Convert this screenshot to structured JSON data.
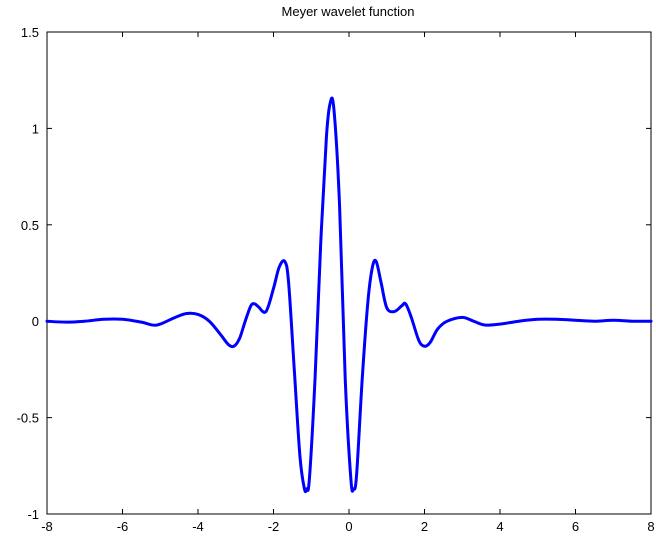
{
  "chart_data": {
    "type": "line",
    "title": "Meyer wavelet function",
    "xlabel": "",
    "ylabel": "",
    "xlim": [
      -8,
      8
    ],
    "ylim": [
      -1,
      1.5
    ],
    "xticks": [
      -8,
      -6,
      -4,
      -2,
      0,
      2,
      4,
      6,
      8
    ],
    "xtick_labels": [
      "-8",
      "-6",
      "-4",
      "-2",
      "0",
      "2",
      "4",
      "6",
      "8"
    ],
    "yticks": [
      -1,
      -0.5,
      0,
      0.5,
      1,
      1.5
    ],
    "ytick_labels": [
      "-1",
      "-0.5",
      "0",
      "0.5",
      "1",
      "1.5"
    ],
    "grid": false,
    "legend": "none",
    "series": [
      {
        "color": "#0000ff",
        "x": [
          -8,
          -7.5,
          -7,
          -6.5,
          -6,
          -5.5,
          -5.2,
          -5,
          -4.6,
          -4.3,
          -4,
          -3.7,
          -3.4,
          -3.2,
          -3.05,
          -2.9,
          -2.75,
          -2.6,
          -2.5,
          -2.4,
          -2.2,
          -2.0,
          -1.85,
          -1.7,
          -1.6,
          -1.45,
          -1.3,
          -1.18,
          -1.12,
          -1.05,
          -0.9,
          -0.75,
          -0.6,
          -0.5,
          -0.4,
          -0.25,
          -0.1,
          0.05,
          0.12,
          0.2,
          0.35,
          0.5,
          0.62,
          0.72,
          0.85,
          1.0,
          1.2,
          1.4,
          1.5,
          1.65,
          1.85,
          2.0,
          2.15,
          2.35,
          2.6,
          3.0,
          3.3,
          3.6,
          4.0,
          4.5,
          5.0,
          5.5,
          6.0,
          6.5,
          7.0,
          7.5,
          8.0
        ],
        "y": [
          0.0,
          -0.005,
          0.0,
          0.01,
          0.01,
          -0.005,
          -0.02,
          -0.015,
          0.02,
          0.04,
          0.035,
          0.0,
          -0.07,
          -0.12,
          -0.13,
          -0.09,
          0.0,
          0.08,
          0.09,
          0.075,
          0.05,
          0.17,
          0.28,
          0.31,
          0.2,
          -0.25,
          -0.7,
          -0.87,
          -0.87,
          -0.82,
          -0.3,
          0.4,
          0.95,
          1.13,
          1.1,
          0.6,
          -0.3,
          -0.82,
          -0.87,
          -0.8,
          -0.3,
          0.1,
          0.28,
          0.31,
          0.2,
          0.07,
          0.05,
          0.08,
          0.09,
          0.02,
          -0.1,
          -0.13,
          -0.11,
          -0.04,
          0.0,
          0.02,
          0.0,
          -0.02,
          -0.015,
          0.0,
          0.01,
          0.01,
          0.005,
          0.0,
          0.005,
          0.0,
          0.0
        ]
      }
    ]
  }
}
